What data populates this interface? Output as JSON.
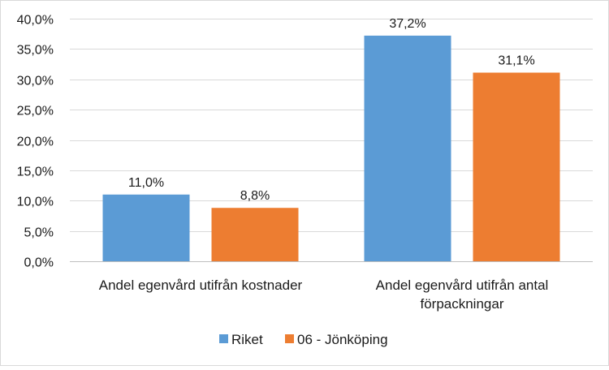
{
  "chart_data": {
    "type": "bar",
    "title": "",
    "xlabel": "",
    "ylabel": "",
    "categories": [
      [
        "Andel egenvård utifrån kostnader"
      ],
      [
        "Andel egenvård utifrån antal",
        "förpackningar"
      ]
    ],
    "series": [
      {
        "name": "Riket",
        "color": "#5b9bd5",
        "values": [
          11.0,
          37.2
        ],
        "labels": [
          "11,0%",
          "37,2%"
        ]
      },
      {
        "name": "06 - Jönköping",
        "color": "#ed7d31",
        "values": [
          8.8,
          31.1
        ],
        "labels": [
          "8,8%",
          "31,1%"
        ]
      }
    ],
    "ylim": [
      0,
      40
    ],
    "yticks": [
      "0,0%",
      "5,0%",
      "10,0%",
      "15,0%",
      "20,0%",
      "25,0%",
      "30,0%",
      "35,0%",
      "40,0%"
    ],
    "grid": true,
    "legend_position": "bottom"
  }
}
